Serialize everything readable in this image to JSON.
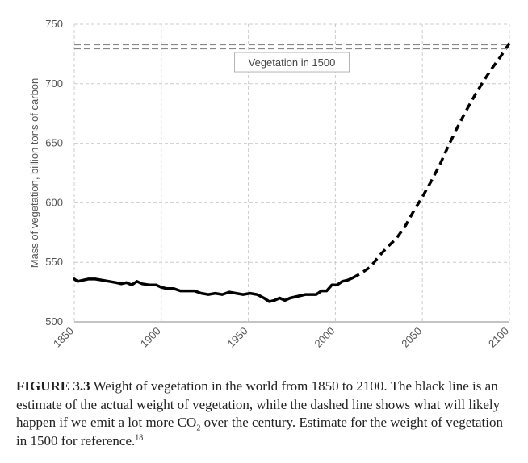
{
  "chart_data": {
    "type": "line",
    "xlabel": "",
    "ylabel": "Mass of vegetation, billion tons of carbon",
    "xlim": [
      1850,
      2100
    ],
    "ylim": [
      500,
      750
    ],
    "x_ticks": [
      "1850",
      "1900",
      "1950",
      "2000",
      "2050",
      "2100"
    ],
    "y_ticks": [
      "500",
      "550",
      "600",
      "650",
      "700",
      "750"
    ],
    "grid": true,
    "series": [
      {
        "name": "Estimated actual weight of vegetation",
        "style": "solid",
        "color": "#000000",
        "x": [
          1850,
          1852,
          1855,
          1858,
          1862,
          1866,
          1870,
          1874,
          1877,
          1880,
          1883,
          1886,
          1889,
          1893,
          1897,
          1900,
          1903,
          1907,
          1911,
          1915,
          1919,
          1923,
          1927,
          1931,
          1935,
          1939,
          1943,
          1947,
          1951,
          1955,
          1959,
          1962,
          1965,
          1968,
          1971,
          1974,
          1977,
          1980,
          1983,
          1986,
          1989,
          1992,
          1995,
          1998,
          2001,
          2004,
          2007,
          2010
        ],
        "y": [
          536,
          534,
          535,
          536,
          536,
          535,
          534,
          533,
          532,
          533,
          531,
          534,
          532,
          531,
          531,
          529,
          528,
          528,
          526,
          526,
          526,
          524,
          523,
          524,
          523,
          525,
          524,
          523,
          524,
          523,
          520,
          517,
          518,
          520,
          518,
          520,
          521,
          522,
          523,
          523,
          523,
          526,
          526,
          531,
          531,
          534,
          535,
          537
        ]
      },
      {
        "name": "Projection with high CO2 emissions",
        "style": "dashed",
        "color": "#000000",
        "x": [
          2010,
          2015,
          2020,
          2025,
          2030,
          2035,
          2040,
          2045,
          2050,
          2055,
          2060,
          2065,
          2070,
          2075,
          2080,
          2085,
          2090,
          2095,
          2100
        ],
        "y": [
          537,
          541,
          546,
          555,
          563,
          570,
          580,
          593,
          605,
          618,
          632,
          648,
          663,
          677,
          690,
          702,
          713,
          723,
          734
        ]
      },
      {
        "name": "Vegetation in 1500",
        "style": "double-dashed",
        "color": "#888888",
        "x": [
          1850,
          2100
        ],
        "y": [
          731,
          731
        ]
      }
    ],
    "annotations": [
      {
        "text": "Vegetation in 1500",
        "x": 1975,
        "y": 731
      }
    ]
  },
  "caption": {
    "figure_label": "FIGURE 3.3",
    "part1": " Weight of vegetation in the world from 1850 to 2100. The black line is an estimate of the actual weight of vegetation, while the dashed line shows what will likely happen if we emit a lot more CO",
    "subscript": "2",
    "part2": " over the century. Estimate for the weight of vegetation in 1500 for reference.",
    "footnote": "18"
  }
}
